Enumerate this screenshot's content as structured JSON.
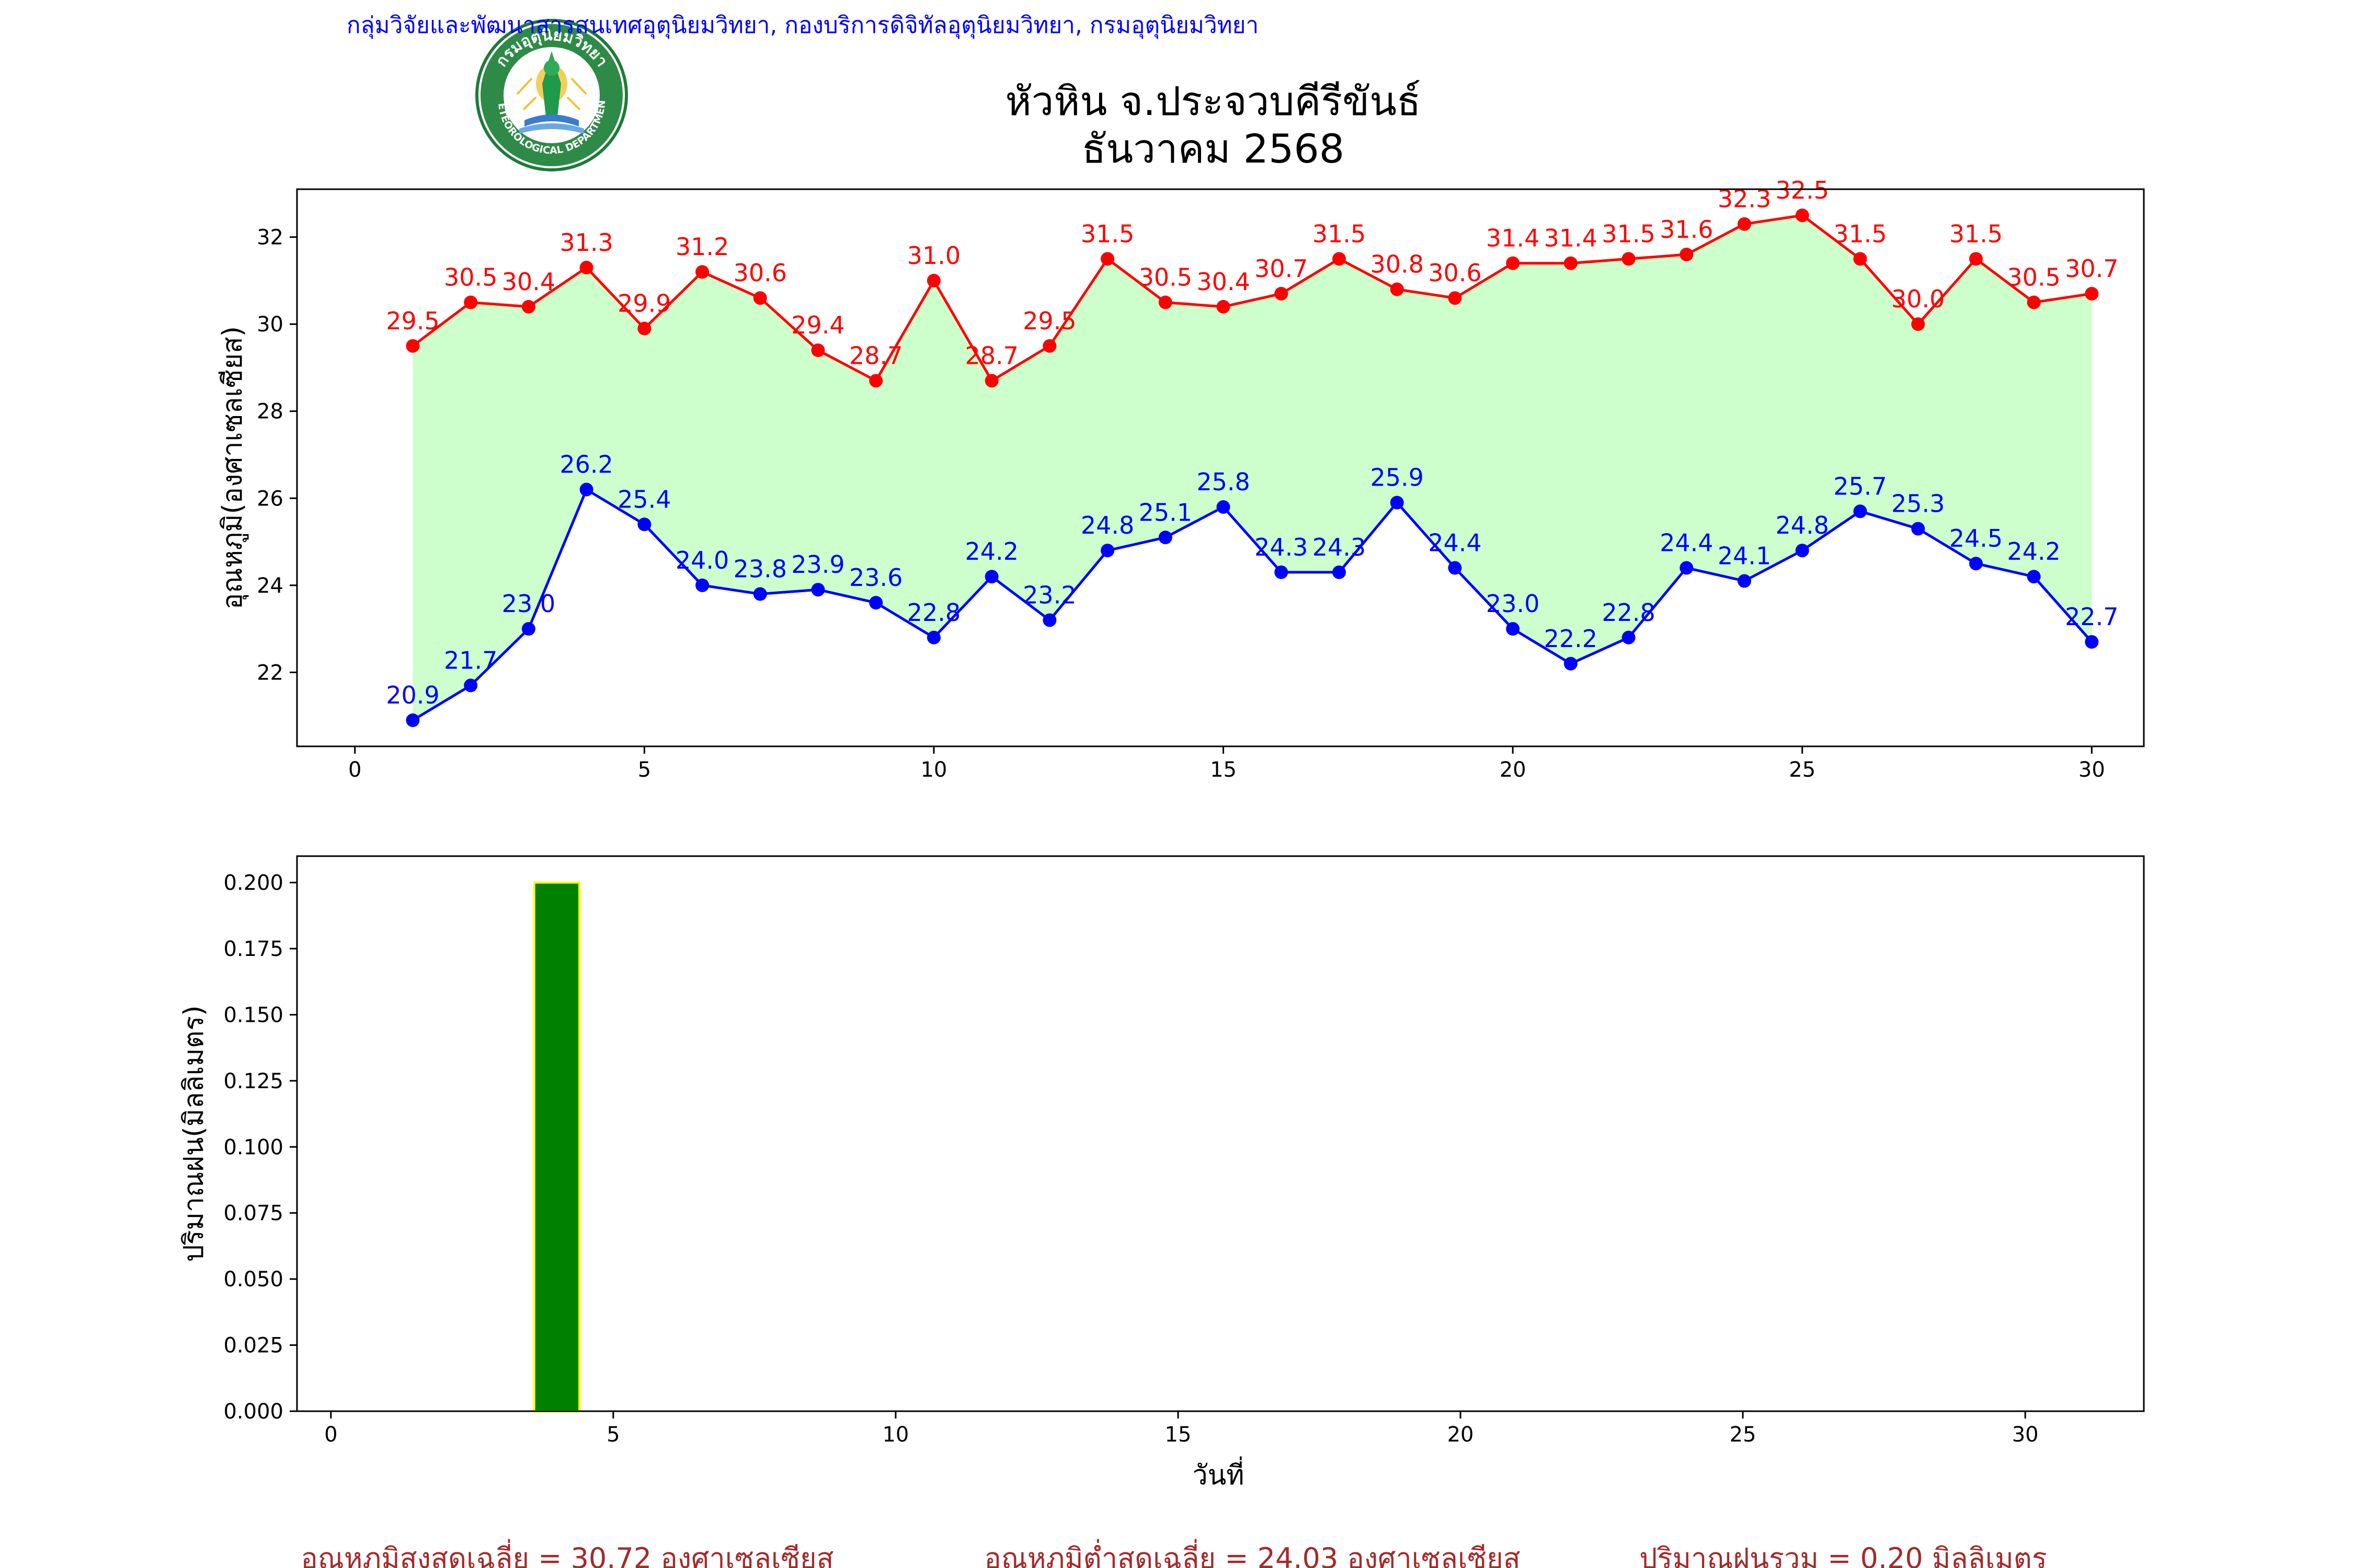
{
  "header": {
    "agency": "กลุ่มวิจัยและพัฒนาสารสนเทศอุตุนิยมวิทยา, กองบริการดิจิทัลอุตุนิยมวิทยา, กรมอุตุนิยมวิทยา",
    "title_line1": "หัวหิน จ.ประจวบคีรีขันธ์",
    "title_line2": "ธันวาคม 2568"
  },
  "logo": {
    "arc_text": "กรมอุตุนิยมวิทยา",
    "bottom_text": "METEOROLOGICAL DEPARTMENT"
  },
  "colors": {
    "max": "#ff0000",
    "min": "#0000ff",
    "fill": "#ccffcc",
    "bar": "#008000",
    "bar_edge": "#ffff00",
    "agency": "#0000ff",
    "summary": "#a52a2a",
    "axis": "#000000"
  },
  "chart_data": [
    {
      "type": "line",
      "ylabel": "อุณหภูมิ(องศาเซลเซียส)",
      "xlim": [
        -1,
        30.9
      ],
      "ylim": [
        20.3,
        33.1
      ],
      "xticks": [
        0,
        5,
        10,
        15,
        20,
        25,
        30
      ],
      "yticks": [
        22,
        24,
        26,
        28,
        30,
        32
      ],
      "fill_between": true,
      "x": [
        1,
        2,
        3,
        4,
        5,
        6,
        7,
        8,
        9,
        10,
        11,
        12,
        13,
        14,
        15,
        16,
        17,
        18,
        19,
        20,
        21,
        22,
        23,
        24,
        25,
        26,
        27,
        28,
        29,
        30
      ],
      "series": [
        {
          "role": "max",
          "values": [
            29.5,
            30.5,
            30.4,
            31.3,
            29.9,
            31.2,
            30.6,
            29.4,
            28.7,
            31.0,
            28.7,
            29.5,
            31.5,
            30.5,
            30.4,
            30.7,
            31.5,
            30.8,
            30.6,
            31.4,
            31.4,
            31.5,
            31.6,
            32.3,
            32.5,
            31.5,
            30.0,
            31.5,
            30.5,
            30.7
          ]
        },
        {
          "role": "min",
          "values": [
            20.9,
            21.7,
            23.0,
            26.2,
            25.4,
            24.0,
            23.8,
            23.9,
            23.6,
            22.8,
            24.2,
            23.2,
            24.8,
            25.1,
            25.8,
            24.3,
            24.3,
            25.9,
            24.4,
            23.0,
            22.2,
            22.8,
            24.4,
            24.1,
            24.8,
            25.7,
            25.3,
            24.5,
            24.2,
            22.7
          ]
        }
      ]
    },
    {
      "type": "bar",
      "xlabel": "วันที่",
      "ylabel": "ปริมาณฝน(มิลลิเมตร)",
      "xlim": [
        -0.6,
        32.1
      ],
      "ylim": [
        0,
        0.21
      ],
      "xticks": [
        0,
        5,
        10,
        15,
        20,
        25,
        30
      ],
      "yticks": [
        "0.000",
        "0.025",
        "0.050",
        "0.075",
        "0.100",
        "0.125",
        "0.150",
        "0.175",
        "0.200"
      ],
      "x": [
        1,
        2,
        3,
        4,
        5,
        6,
        7,
        8,
        9,
        10,
        11,
        12,
        13,
        14,
        15,
        16,
        17,
        18,
        19,
        20,
        21,
        22,
        23,
        24,
        25,
        26,
        27,
        28,
        29,
        30
      ],
      "values": [
        0,
        0,
        0,
        0.2,
        0,
        0,
        0,
        0,
        0,
        0,
        0,
        0,
        0,
        0,
        0,
        0,
        0,
        0,
        0,
        0,
        0,
        0,
        0,
        0,
        0,
        0,
        0,
        0,
        0,
        0
      ]
    }
  ],
  "summary": {
    "avg_max": "อุณหภูมิสูงสุดเฉลี่ย = 30.72 องศาเซลเซียส",
    "avg_min": "อุณหภูมิต่ำสุดเฉลี่ย = 24.03 องศาเซลเซียส",
    "total_rain": "ปริมาณฝนรวม = 0.20 มิลลิเมตร"
  }
}
